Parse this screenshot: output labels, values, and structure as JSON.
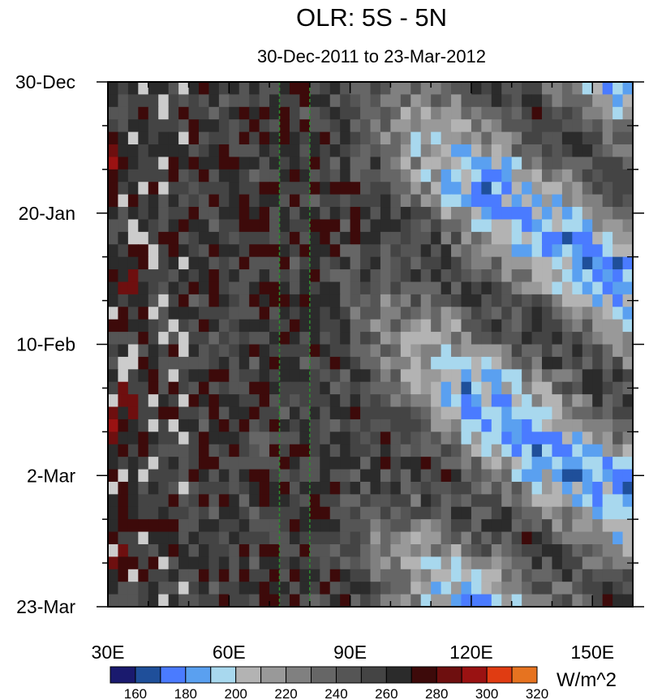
{
  "chart_data": {
    "type": "heatmap",
    "title": "OLR: 5S - 5N",
    "subtitle": "30-Dec-2011 to 23-Mar-2012",
    "x_axis": {
      "range": [
        30,
        160
      ],
      "major_ticks": [
        30,
        60,
        90,
        120,
        150
      ],
      "tick_labels": [
        "30E",
        "60E",
        "90E",
        "120E",
        "150E"
      ],
      "minor_step": 10
    },
    "y_axis": {
      "range_days": [
        0,
        84
      ],
      "major_ticks": [
        0,
        21,
        42,
        63,
        84
      ],
      "tick_labels": [
        "30-Dec",
        "20-Jan",
        "10-Feb",
        "2-Mar",
        "23-Mar"
      ],
      "minor_step_days": 7
    },
    "reference_lines_lon": [
      72.5,
      80
    ],
    "colorbar": {
      "levels": [
        160,
        180,
        200,
        220,
        240,
        260,
        280,
        300,
        320
      ],
      "level_step": 10,
      "colors": [
        "#1a1a6e",
        "#1f4f9a",
        "#4a7bff",
        "#5aa0f0",
        "#a8d8ee",
        "#b3b3b3",
        "#999999",
        "#808080",
        "#666666",
        "#555555",
        "#444444",
        "#2b2b2b",
        "#3d0a0a",
        "#6e0f0f",
        "#9a1212",
        "#e03c12",
        "#e67320"
      ],
      "units": "W/m^2"
    },
    "cells_summary": {
      "cols": 52,
      "rows": 42,
      "missing_color": "#cccccc"
    }
  }
}
